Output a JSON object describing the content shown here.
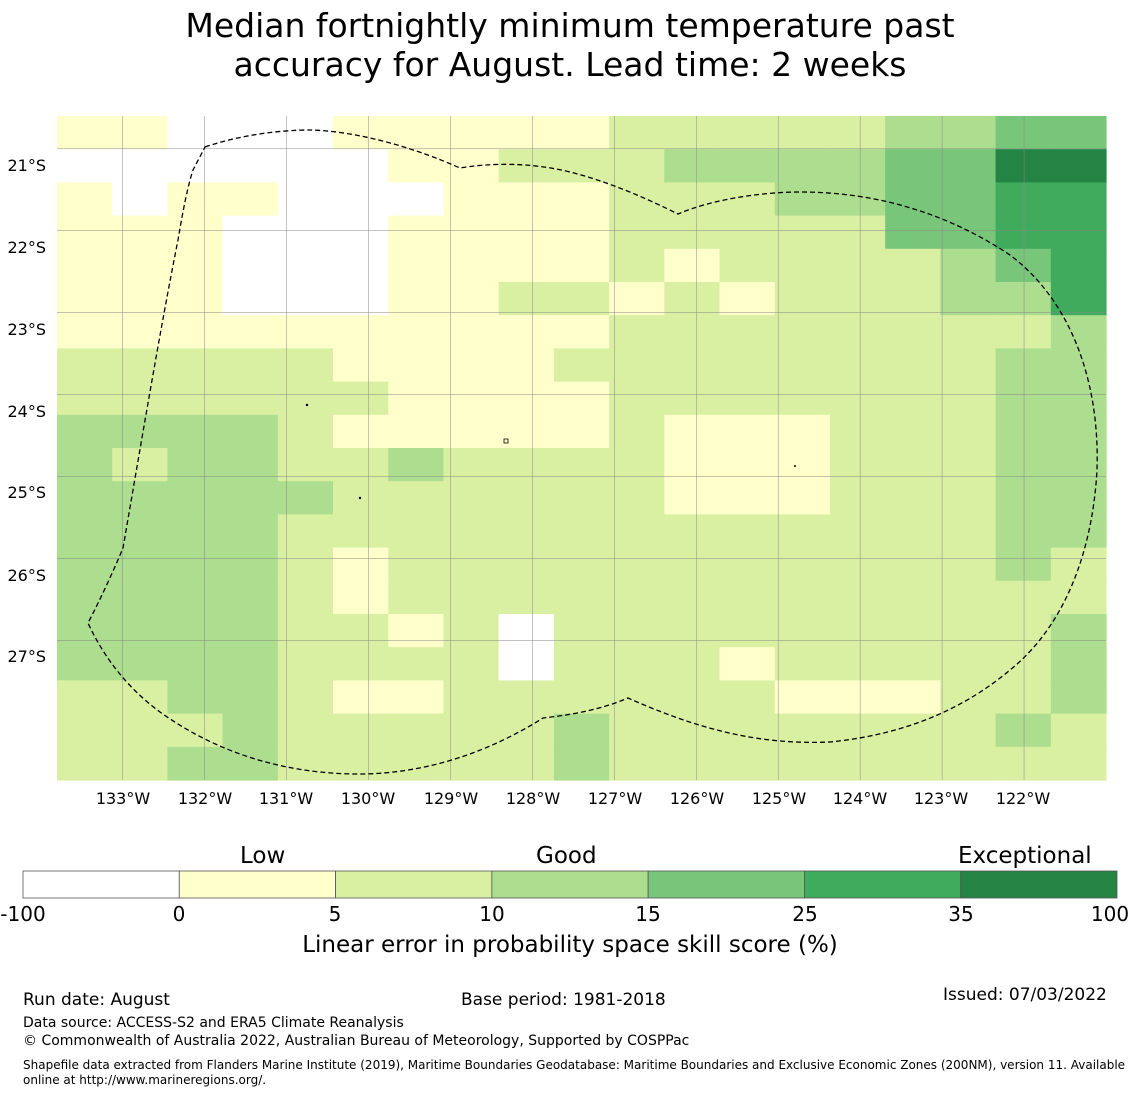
{
  "title": {
    "line1": "Median fortnightly minimum temperature past",
    "line2": "accuracy for August. Lead time: 2 weeks"
  },
  "map": {
    "lat_labels": [
      "21°S",
      "22°S",
      "23°S",
      "24°S",
      "25°S",
      "26°S",
      "27°S"
    ],
    "lon_labels": [
      "133°W",
      "132°W",
      "131°W",
      "130°W",
      "129°W",
      "128°W",
      "127°W",
      "126°W",
      "125°W",
      "124°W",
      "123°W",
      "122°W"
    ],
    "extent": {
      "lon_min": -133.8,
      "lon_max": -121.0,
      "lat_north": -20.6,
      "lat_south": -28.7
    },
    "cell_size_deg": 0.55,
    "grid": [
      "1100011111222223344",
      "0000001122233334466",
      "1011000111222334455",
      "1110001111222224455",
      "1110001111212222345",
      "1110001122121222335",
      "1111111111222222223",
      "2222211112222222233",
      "2222221111222222233",
      "3333211111211122233",
      "3233223222211122233",
      "3333322222211122233",
      "3333222222222222233",
      "3333212222222222232",
      "3333212222222222222",
      "3333221202222222223",
      "3333222202221222223",
      "2233211222222111223",
      "2223222223222222232",
      "2233222223222222222"
    ]
  },
  "colors": {
    "classes": [
      "#ffffff",
      "#ffffcc",
      "#d9f0a3",
      "#addd8e",
      "#78c679",
      "#41ab5d",
      "#238443"
    ],
    "boundary": "#000000",
    "gridline": "#888888"
  },
  "colorbar": {
    "categories": [
      "Low",
      "Good",
      "Exceptional"
    ],
    "ticks": [
      "-100",
      "0",
      "5",
      "10",
      "15",
      "25",
      "35",
      "100"
    ],
    "title": "Linear error in probability space skill score (%)"
  },
  "footer": {
    "run_date": "Run date: August",
    "base_period": "Base period: 1981-2018",
    "issued": "Issued: 07/03/2022",
    "data_source": "Data source: ACCESS-S2 and ERA5 Climate Reanalysis",
    "copyright": "© Commonwealth of Australia 2022, Australian Bureau of Meteorology, Supported by COSPPac",
    "shapefile": "Shapefile data extracted from Flanders Marine Institute (2019), Maritime Boundaries Geodatabase: Maritime Boundaries and Exclusive Economic Zones (200NM), version 11. Available online at http://www.marineregions.org/."
  }
}
